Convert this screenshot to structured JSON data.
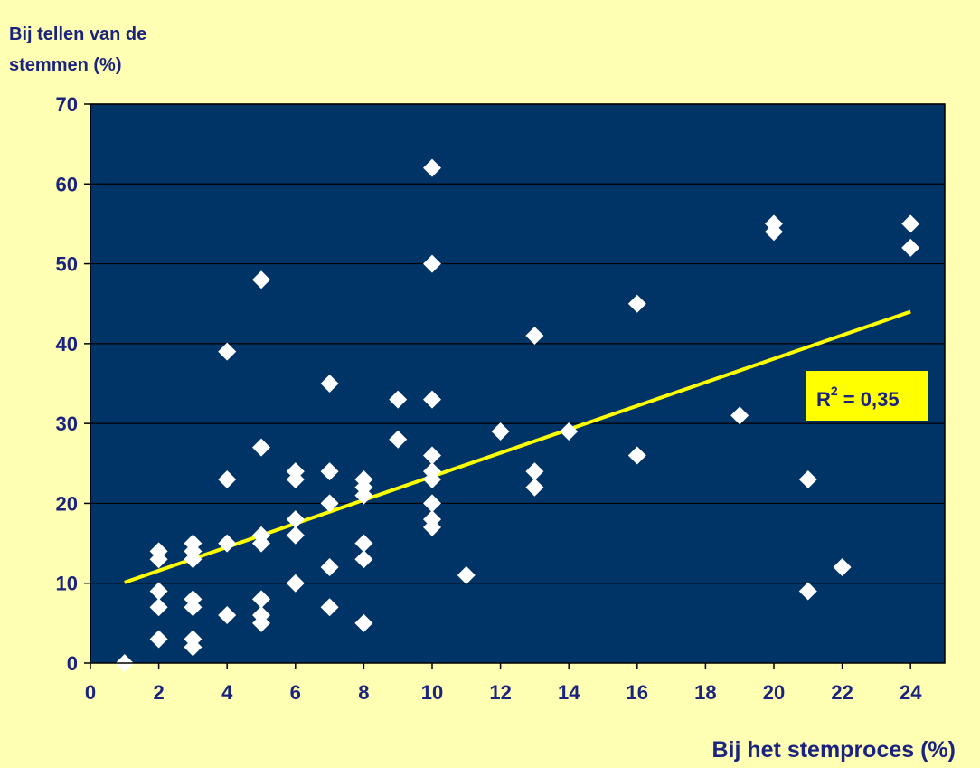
{
  "chart_data": {
    "type": "scatter",
    "title": "",
    "ylabel_lines": [
      "Bij tellen van de",
      "stemmen (%)"
    ],
    "xlabel": "Bij het stemproces (%)",
    "xlim": [
      0,
      25
    ],
    "ylim": [
      0,
      70
    ],
    "xticks": [
      0,
      2,
      4,
      6,
      8,
      10,
      12,
      14,
      16,
      18,
      20,
      22,
      24
    ],
    "yticks": [
      0,
      10,
      20,
      30,
      40,
      50,
      60,
      70
    ],
    "grid": "horizontal",
    "plot_bg": "#003366",
    "page_bg": "#ffffb4",
    "point_color": "#ffffff",
    "trend_color": "#ffff00",
    "text_color": "#1a237e",
    "r2_label": {
      "main": "R",
      "sup": "2",
      "rest": " = 0,35"
    },
    "trendline": {
      "x": [
        1,
        24
      ],
      "y": [
        10.1,
        44
      ]
    },
    "points": [
      {
        "x": 1,
        "y": 0
      },
      {
        "x": 2,
        "y": 14
      },
      {
        "x": 2,
        "y": 13
      },
      {
        "x": 2,
        "y": 9
      },
      {
        "x": 2,
        "y": 7
      },
      {
        "x": 2,
        "y": 3
      },
      {
        "x": 3,
        "y": 15
      },
      {
        "x": 3,
        "y": 14
      },
      {
        "x": 3,
        "y": 13
      },
      {
        "x": 3,
        "y": 8
      },
      {
        "x": 3,
        "y": 7
      },
      {
        "x": 3,
        "y": 3
      },
      {
        "x": 3,
        "y": 2
      },
      {
        "x": 4,
        "y": 39
      },
      {
        "x": 4,
        "y": 23
      },
      {
        "x": 4,
        "y": 15
      },
      {
        "x": 4,
        "y": 6
      },
      {
        "x": 5,
        "y": 48
      },
      {
        "x": 5,
        "y": 27
      },
      {
        "x": 5,
        "y": 16
      },
      {
        "x": 5,
        "y": 15
      },
      {
        "x": 5,
        "y": 8
      },
      {
        "x": 5,
        "y": 6
      },
      {
        "x": 5,
        "y": 5
      },
      {
        "x": 6,
        "y": 24
      },
      {
        "x": 6,
        "y": 23
      },
      {
        "x": 6,
        "y": 18
      },
      {
        "x": 6,
        "y": 16
      },
      {
        "x": 6,
        "y": 10
      },
      {
        "x": 7,
        "y": 35
      },
      {
        "x": 7,
        "y": 24
      },
      {
        "x": 7,
        "y": 20
      },
      {
        "x": 7,
        "y": 12
      },
      {
        "x": 7,
        "y": 7
      },
      {
        "x": 8,
        "y": 23
      },
      {
        "x": 8,
        "y": 22
      },
      {
        "x": 8,
        "y": 21
      },
      {
        "x": 8,
        "y": 15
      },
      {
        "x": 8,
        "y": 13
      },
      {
        "x": 8,
        "y": 5
      },
      {
        "x": 9,
        "y": 33
      },
      {
        "x": 9,
        "y": 28
      },
      {
        "x": 10,
        "y": 62
      },
      {
        "x": 10,
        "y": 50
      },
      {
        "x": 10,
        "y": 33
      },
      {
        "x": 10,
        "y": 26
      },
      {
        "x": 10,
        "y": 24
      },
      {
        "x": 10,
        "y": 23
      },
      {
        "x": 10,
        "y": 20
      },
      {
        "x": 10,
        "y": 18
      },
      {
        "x": 10,
        "y": 17
      },
      {
        "x": 11,
        "y": 11
      },
      {
        "x": 12,
        "y": 29
      },
      {
        "x": 13,
        "y": 41
      },
      {
        "x": 13,
        "y": 24
      },
      {
        "x": 13,
        "y": 22
      },
      {
        "x": 14,
        "y": 29
      },
      {
        "x": 16,
        "y": 45
      },
      {
        "x": 16,
        "y": 26
      },
      {
        "x": 19,
        "y": 31
      },
      {
        "x": 20,
        "y": 55
      },
      {
        "x": 20,
        "y": 54
      },
      {
        "x": 21,
        "y": 23
      },
      {
        "x": 21,
        "y": 9
      },
      {
        "x": 22,
        "y": 12
      },
      {
        "x": 24,
        "y": 55
      },
      {
        "x": 24,
        "y": 52
      }
    ]
  }
}
